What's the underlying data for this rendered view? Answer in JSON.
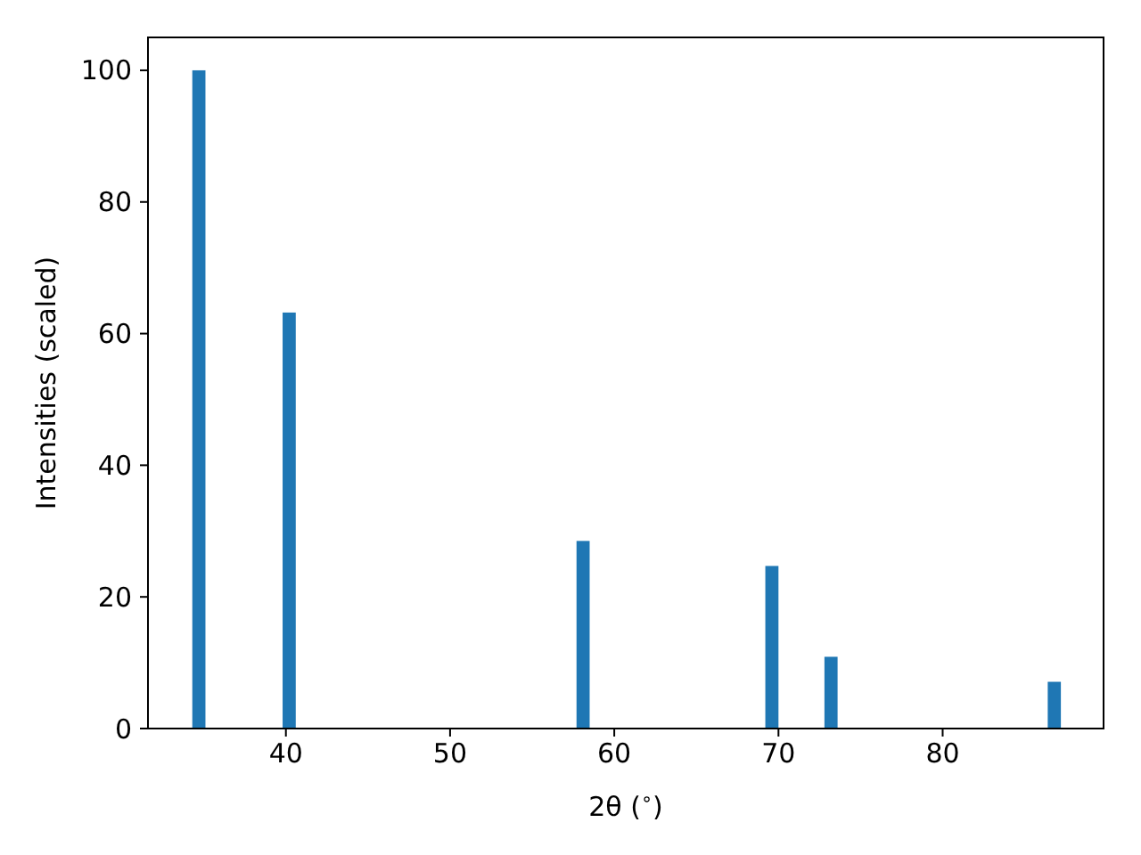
{
  "chart_data": {
    "type": "bar",
    "xlabel": "2θ ($^{∘}$)",
    "ylabel": "Intensities (scaled)",
    "x": [
      34.7,
      40.2,
      58.1,
      69.6,
      73.2,
      86.8
    ],
    "values": [
      100,
      63.2,
      28.5,
      24.7,
      10.9,
      7.1
    ],
    "color": "#1f77b4",
    "xlim": [
      31.6,
      89.8
    ],
    "xticks": [
      40,
      50,
      60,
      70,
      80
    ],
    "ylim": [
      0,
      105
    ],
    "yticks": [
      0,
      20,
      40,
      60,
      80,
      100
    ],
    "grid": false
  }
}
